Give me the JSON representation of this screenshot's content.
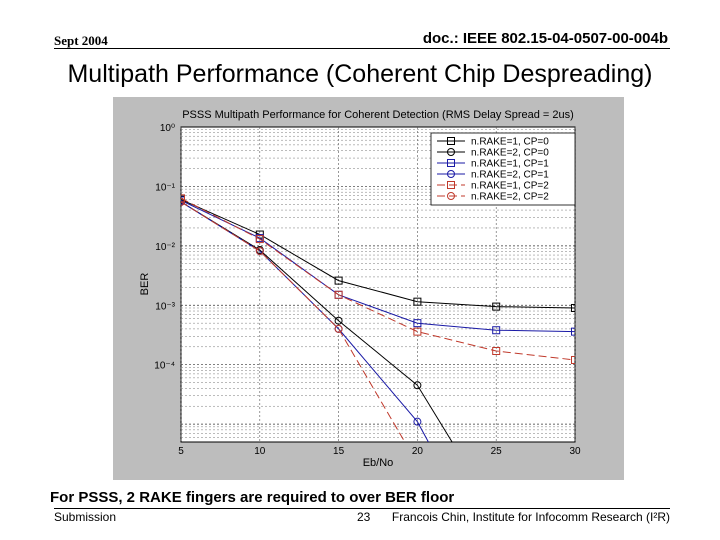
{
  "header": {
    "date": "Sept 2004",
    "doc_id": "doc.: IEEE 802.15-04-0507-00-004b"
  },
  "slide_title": "Multipath Performance (Coherent Chip Despreading)",
  "caption": "For PSSS, 2 RAKE fingers are required to over BER floor",
  "footer": {
    "left": "Submission",
    "page": "23",
    "right": "Francois Chin, Institute for Infocomm Research (I²R)"
  },
  "chart_data": {
    "type": "line",
    "title": "PSSS Multipath Performance for Coherent Detection (RMS Delay Spread = 2us)",
    "xlabel": "Eb/No",
    "ylabel": "BER",
    "x": [
      5,
      10,
      15,
      20,
      25,
      30
    ],
    "x_ticks": [
      "5",
      "10",
      "15",
      "20",
      "25",
      "30"
    ],
    "y_scale": "log",
    "y_ticks": [
      {
        "value": 1,
        "label": "10⁰"
      },
      {
        "value": 0.1,
        "label": "10⁻¹"
      },
      {
        "value": 0.01,
        "label": "10⁻²"
      },
      {
        "value": 0.001,
        "label": "10⁻³"
      },
      {
        "value": 0.0001,
        "label": "10⁻⁴"
      }
    ],
    "xlim": [
      5,
      30
    ],
    "ylim": [
      5e-06,
      1
    ],
    "grid": true,
    "legend_position": "top-right",
    "series": [
      {
        "name": "n.RAKE=1, CP=0",
        "marker": "square",
        "color": "#000000",
        "dash": "none",
        "points": [
          [
            5,
            0.06
          ],
          [
            10,
            0.0155
          ],
          [
            15,
            0.0026
          ],
          [
            20,
            0.00115
          ],
          [
            25,
            0.00095
          ],
          [
            30,
            0.0009
          ]
        ]
      },
      {
        "name": "n.RAKE=2, CP=0",
        "marker": "circle",
        "color": "#000000",
        "dash": "none",
        "points": [
          [
            5,
            0.055
          ],
          [
            10,
            0.0085
          ],
          [
            15,
            0.00055
          ],
          [
            20,
            4.5e-05
          ],
          [
            22.2,
            5e-06
          ]
        ]
      },
      {
        "name": "n.RAKE=1, CP=1",
        "marker": "square",
        "color": "#1a1aa6",
        "dash": "none",
        "points": [
          [
            5,
            0.058
          ],
          [
            10,
            0.0135
          ],
          [
            15,
            0.0015
          ],
          [
            20,
            0.0005
          ],
          [
            25,
            0.00038
          ],
          [
            30,
            0.00036
          ]
        ]
      },
      {
        "name": "n.RAKE=2, CP=1",
        "marker": "circle",
        "color": "#1a1aa6",
        "dash": "none",
        "points": [
          [
            5,
            0.055
          ],
          [
            10,
            0.0082
          ],
          [
            15,
            0.0004
          ],
          [
            20,
            1.1e-05
          ],
          [
            20.7,
            5e-06
          ]
        ]
      },
      {
        "name": "n.RAKE=1, CP=2",
        "marker": "square",
        "color": "#c0392b",
        "dash": "8,4",
        "points": [
          [
            5,
            0.063
          ],
          [
            10,
            0.013
          ],
          [
            15,
            0.0015
          ],
          [
            20,
            0.00036
          ],
          [
            25,
            0.00017
          ],
          [
            30,
            0.00012
          ]
        ]
      },
      {
        "name": "n.RAKE=2, CP=2",
        "marker": "circle",
        "color": "#c0392b",
        "dash": "8,4",
        "points": [
          [
            5,
            0.055
          ],
          [
            10,
            0.0082
          ],
          [
            15,
            0.0004
          ],
          [
            19.2,
            5e-06
          ]
        ]
      }
    ]
  }
}
